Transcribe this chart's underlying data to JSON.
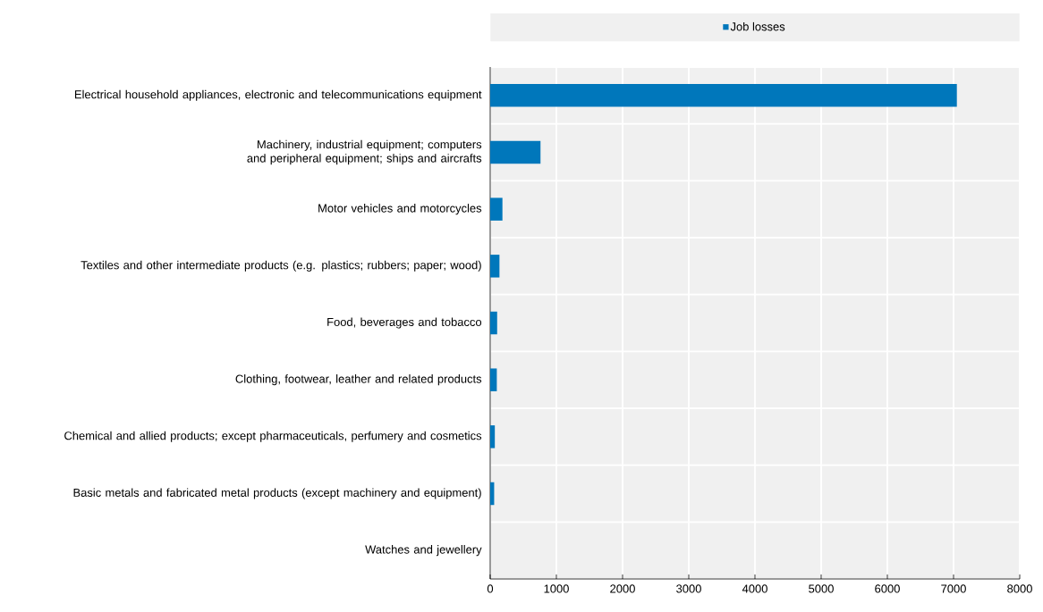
{
  "chart_data": {
    "type": "bar",
    "orientation": "horizontal",
    "categories": [
      "Electrical household appliances, electronic and telecommunications equipment",
      "Machinery, industrial equipment; computers and peripheral equipment; ships and aircrafts",
      "Motor vehicles and motorcycles",
      "Textiles and other intermediate products (e.g. plastics; rubbers; paper; wood)",
      "Food, beverages and tobacco",
      "Clothing, footwear, leather and related products",
      "Chemical and allied products; except pharmaceuticals, perfumery and cosmetics",
      "Basic metals and fabricated metal products (except machinery and equipment)",
      "Watches and jewellery"
    ],
    "series": [
      {
        "name": "Job losses",
        "color": "#0077bb",
        "values": [
          7050,
          760,
          185,
          140,
          105,
          100,
          70,
          60,
          0
        ]
      }
    ],
    "xlim": [
      0,
      8000
    ],
    "xticks": [
      0,
      1000,
      2000,
      3000,
      4000,
      5000,
      6000,
      7000,
      8000
    ],
    "grid": true,
    "legend": "top"
  }
}
